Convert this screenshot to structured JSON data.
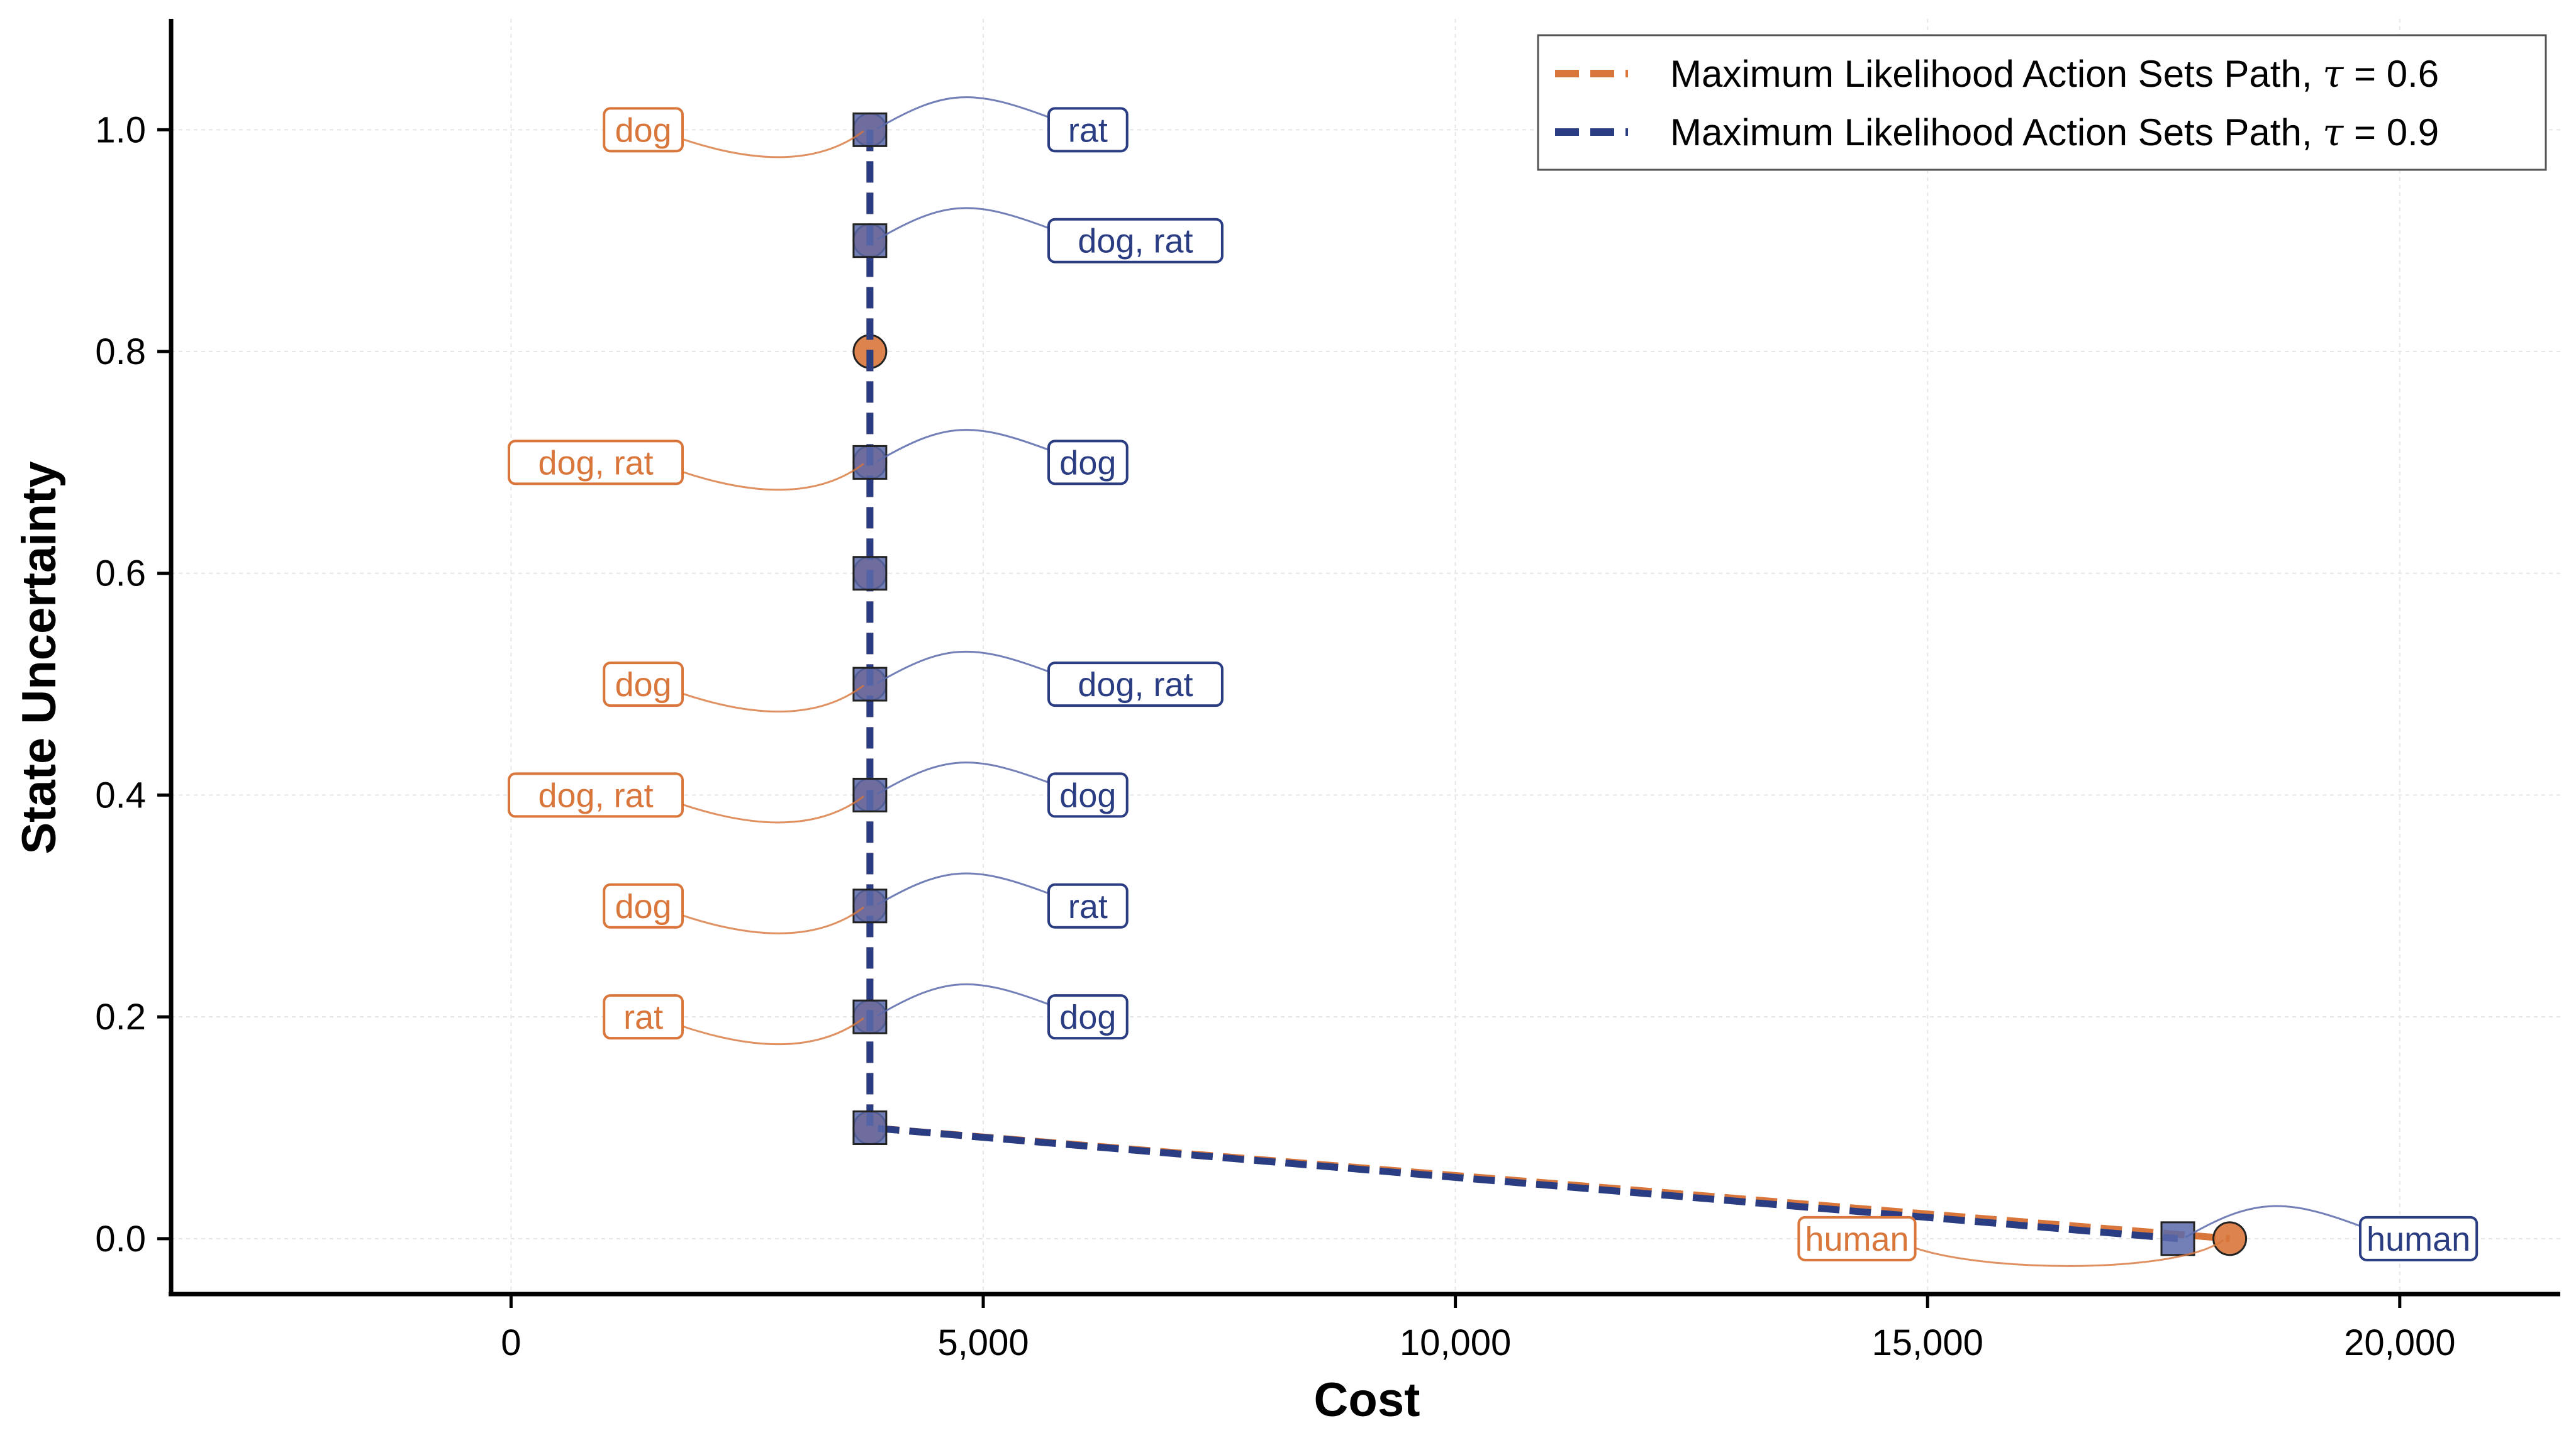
{
  "chart_data": {
    "type": "line",
    "xlabel": "Cost",
    "ylabel": "State Uncertainty",
    "xlim": [
      -3600,
      21700
    ],
    "ylim": [
      -0.05,
      1.1
    ],
    "xticks": [
      0,
      5000,
      10000,
      15000,
      20000
    ],
    "xtick_labels": [
      "0",
      "5,000",
      "10,000",
      "15,000",
      "20,000"
    ],
    "yticks": [
      0.0,
      0.2,
      0.4,
      0.6,
      0.8,
      1.0
    ],
    "ytick_labels": [
      "0.0",
      "0.2",
      "0.4",
      "0.6",
      "0.8",
      "1.0"
    ],
    "grid": true,
    "legend_position": "top-right",
    "series": [
      {
        "name": "Maximum Likelihood Action Sets Path, τ = 0.6",
        "legend_prefix": "Maximum Likelihood Action Sets Path, ",
        "legend_tau": "τ",
        "legend_suffix": " = 0.6",
        "color": "#d8763b",
        "marker": "circle",
        "x": [
          3800,
          3800,
          3800,
          3800,
          3800,
          3800,
          3800,
          3800,
          3800,
          3800,
          18200
        ],
        "y": [
          1.0,
          0.9,
          0.8,
          0.7,
          0.6,
          0.5,
          0.4,
          0.3,
          0.2,
          0.1,
          0.0
        ],
        "annotations": [
          {
            "y": 1.0,
            "label": "dog"
          },
          {
            "y": 0.7,
            "label": "dog, rat"
          },
          {
            "y": 0.5,
            "label": "dog"
          },
          {
            "y": 0.4,
            "label": "dog, rat"
          },
          {
            "y": 0.3,
            "label": "dog"
          },
          {
            "y": 0.2,
            "label": "rat"
          },
          {
            "y": 0.0,
            "label": "human"
          }
        ]
      },
      {
        "name": "Maximum Likelihood Action Sets Path, τ = 0.9",
        "legend_prefix": "Maximum Likelihood Action Sets Path, ",
        "legend_tau": "τ",
        "legend_suffix": " = 0.9",
        "color": "#2b3d82",
        "marker_fill": "#5a6aab",
        "marker": "square",
        "x": [
          3800,
          3800,
          3800,
          3800,
          3800,
          3800,
          3800,
          3800,
          3800,
          17650
        ],
        "y": [
          1.0,
          0.9,
          0.7,
          0.6,
          0.5,
          0.4,
          0.3,
          0.2,
          0.1,
          0.0
        ],
        "annotations": [
          {
            "y": 1.0,
            "label": "rat"
          },
          {
            "y": 0.9,
            "label": "dog, rat"
          },
          {
            "y": 0.7,
            "label": "dog"
          },
          {
            "y": 0.5,
            "label": "dog, rat"
          },
          {
            "y": 0.4,
            "label": "dog"
          },
          {
            "y": 0.3,
            "label": "rat"
          },
          {
            "y": 0.2,
            "label": "dog"
          },
          {
            "y": 0.0,
            "label": "human"
          }
        ]
      }
    ]
  }
}
